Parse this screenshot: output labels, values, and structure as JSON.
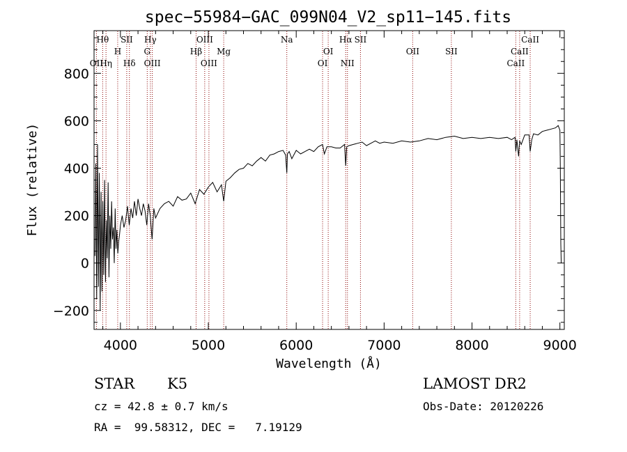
{
  "chart_data": {
    "type": "line",
    "title": "spec−55984−GAC_099N04_V2_sp11−145.fits",
    "xlabel": "Wavelength (Å)",
    "ylabel": "Flux (relative)",
    "xlim": [
      3700,
      9050
    ],
    "ylim": [
      -280,
      980
    ],
    "xticks": [
      {
        "value": 4000,
        "label": "4000"
      },
      {
        "value": 5000,
        "label": "5000"
      },
      {
        "value": 6000,
        "label": "6000"
      },
      {
        "value": 7000,
        "label": "7000"
      },
      {
        "value": 8000,
        "label": "8000"
      },
      {
        "value": 9000,
        "label": "9000"
      }
    ],
    "yticks": [
      {
        "value": -200,
        "label": "−200"
      },
      {
        "value": 0,
        "label": "0"
      },
      {
        "value": 200,
        "label": "200"
      },
      {
        "value": 400,
        "label": "400"
      },
      {
        "value": 600,
        "label": "600"
      },
      {
        "value": 800,
        "label": "800"
      }
    ],
    "series": [
      {
        "color": "#000000",
        "x": [
          3710,
          3720,
          3730,
          3740,
          3750,
          3760,
          3770,
          3780,
          3790,
          3800,
          3810,
          3820,
          3830,
          3840,
          3850,
          3860,
          3870,
          3880,
          3890,
          3900,
          3910,
          3920,
          3930,
          3940,
          3950,
          3960,
          3970,
          3980,
          3990,
          4000,
          4020,
          4040,
          4060,
          4080,
          4100,
          4120,
          4140,
          4160,
          4180,
          4200,
          4220,
          4240,
          4260,
          4280,
          4300,
          4320,
          4340,
          4360,
          4380,
          4400,
          4450,
          4500,
          4550,
          4600,
          4650,
          4700,
          4750,
          4800,
          4850,
          4900,
          4950,
          5000,
          5050,
          5100,
          5150,
          5175,
          5200,
          5250,
          5300,
          5350,
          5400,
          5450,
          5500,
          5550,
          5600,
          5650,
          5700,
          5750,
          5800,
          5850,
          5880,
          5893,
          5900,
          5920,
          5950,
          6000,
          6050,
          6100,
          6150,
          6200,
          6250,
          6300,
          6320,
          6350,
          6400,
          6450,
          6500,
          6550,
          6563,
          6575,
          6600,
          6650,
          6700,
          6750,
          6800,
          6850,
          6900,
          6950,
          7000,
          7100,
          7200,
          7300,
          7400,
          7500,
          7600,
          7700,
          7800,
          7900,
          8000,
          8100,
          8200,
          8300,
          8400,
          8450,
          8490,
          8498,
          8510,
          8530,
          8542,
          8560,
          8600,
          8650,
          8662,
          8680,
          8700,
          8750,
          8800,
          8850,
          8900,
          8950,
          8980,
          9000,
          9005,
          9010,
          9015
        ],
        "y": [
          30,
          420,
          -150,
          500,
          -100,
          380,
          -200,
          300,
          -120,
          260,
          -50,
          350,
          -80,
          180,
          20,
          340,
          -60,
          200,
          60,
          260,
          100,
          150,
          0,
          230,
          60,
          140,
          40,
          90,
          120,
          160,
          200,
          150,
          180,
          240,
          160,
          230,
          190,
          260,
          200,
          270,
          230,
          200,
          250,
          220,
          160,
          250,
          200,
          100,
          230,
          190,
          230,
          250,
          260,
          240,
          280,
          265,
          270,
          295,
          250,
          310,
          290,
          320,
          340,
          300,
          330,
          260,
          345,
          360,
          380,
          395,
          400,
          420,
          410,
          430,
          445,
          430,
          455,
          460,
          470,
          475,
          455,
          380,
          460,
          470,
          440,
          475,
          460,
          470,
          480,
          470,
          490,
          500,
          460,
          490,
          490,
          485,
          485,
          500,
          410,
          490,
          495,
          500,
          505,
          510,
          495,
          505,
          515,
          505,
          510,
          505,
          515,
          510,
          515,
          525,
          520,
          530,
          535,
          525,
          530,
          525,
          530,
          525,
          530,
          520,
          530,
          470,
          520,
          450,
          515,
          500,
          540,
          540,
          470,
          520,
          545,
          540,
          555,
          560,
          565,
          570,
          580,
          560,
          400,
          80,
          0
        ]
      }
    ],
    "lines": [
      {
        "name": "Hθ",
        "wavelength": 3798,
        "row": 0
      },
      {
        "name": "OII",
        "wavelength": 3727,
        "row": 2
      },
      {
        "name": "Hη",
        "wavelength": 3836,
        "row": 2
      },
      {
        "name": "H",
        "wavelength": 3969,
        "row": 1
      },
      {
        "name": "SII",
        "wavelength": 4072,
        "row": 0
      },
      {
        "name": "Hδ",
        "wavelength": 4102,
        "row": 2
      },
      {
        "name": "Hγ",
        "wavelength": 4341,
        "row": 0
      },
      {
        "name": "G",
        "wavelength": 4305,
        "row": 1
      },
      {
        "name": "OIII",
        "wavelength": 4363,
        "row": 2
      },
      {
        "name": "OIII",
        "wavelength": 4959,
        "row": 0
      },
      {
        "name": "Hβ",
        "wavelength": 4861,
        "row": 1
      },
      {
        "name": "OIII",
        "wavelength": 5007,
        "row": 2
      },
      {
        "name": "Mg",
        "wavelength": 5175,
        "row": 1
      },
      {
        "name": "Na",
        "wavelength": 5893,
        "row": 0
      },
      {
        "name": "OI",
        "wavelength": 6364,
        "row": 1
      },
      {
        "name": "OI",
        "wavelength": 6300,
        "row": 2
      },
      {
        "name": "Hα",
        "wavelength": 6563,
        "row": 0
      },
      {
        "name": "SII",
        "wavelength": 6731,
        "row": 0
      },
      {
        "name": "NII",
        "wavelength": 6583,
        "row": 2
      },
      {
        "name": "OII",
        "wavelength": 7325,
        "row": 1
      },
      {
        "name": "SII",
        "wavelength": 7765,
        "row": 1
      },
      {
        "name": "CaII",
        "wavelength": 8662,
        "row": 0
      },
      {
        "name": "CaII",
        "wavelength": 8542,
        "row": 1
      },
      {
        "name": "CaII",
        "wavelength": 8498,
        "row": 2
      }
    ]
  },
  "info": {
    "object_class": "STAR",
    "subclass": "K5",
    "survey": "LAMOST DR2",
    "cz": "cz = 42.8 ± 0.7 km/s",
    "obs_date": "Obs-Date: 20120226",
    "coords": "RA =  99.58312, DEC =   7.19129"
  }
}
